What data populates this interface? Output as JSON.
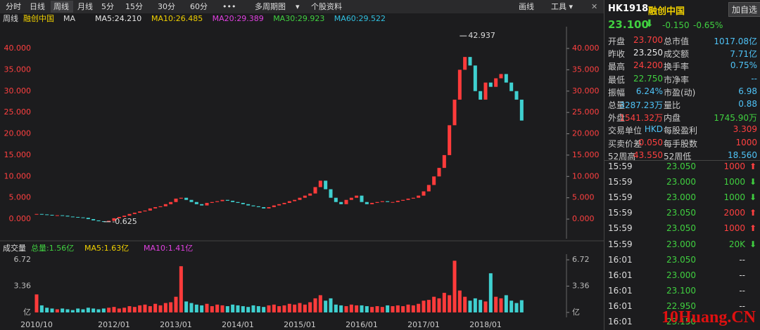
{
  "toolbar": {
    "tabs": [
      "分时",
      "日线",
      "周线",
      "月线",
      "5分",
      "15分",
      "30分",
      "60分",
      "•••",
      "多周期图",
      "▾",
      "个股资料"
    ],
    "active": 2,
    "right": [
      "画线",
      "工具 ▾"
    ]
  },
  "ma_legend": {
    "label": "周线",
    "stock": "融创中国",
    "indicator": "MA",
    "items": [
      {
        "text": "MA5:24.210",
        "color": "#e8e8e8"
      },
      {
        "text": "MA10:26.485",
        "color": "#f0d000"
      },
      {
        "text": "MA20:29.389",
        "color": "#e040e0"
      },
      {
        "text": "MA30:29.923",
        "color": "#40d040"
      },
      {
        "text": "MA60:29.522",
        "color": "#30c0e0"
      }
    ]
  },
  "volume_legend": {
    "label": "成交量",
    "items": [
      {
        "text": "总量:1.56亿",
        "color": "#40d040"
      },
      {
        "text": "MA5:1.63亿",
        "color": "#f0d000"
      },
      {
        "text": "MA10:1.41亿",
        "color": "#e040e0"
      }
    ]
  },
  "chart_data": [
    {
      "type": "candle",
      "title": "价格",
      "categories": [
        "2010/10",
        null,
        null,
        null,
        null,
        null,
        null,
        null,
        null,
        null,
        null,
        null,
        null,
        null,
        null,
        "2012/01",
        null,
        null,
        null,
        null,
        null,
        null,
        null,
        null,
        null,
        null,
        null,
        "2013/01",
        null,
        null,
        null,
        null,
        null,
        null,
        null,
        null,
        null,
        null,
        null,
        "2014/01",
        null,
        null,
        null,
        null,
        null,
        null,
        null,
        null,
        null,
        null,
        null,
        "2015/01",
        null,
        null,
        null,
        null,
        null,
        null,
        null,
        null,
        null,
        null,
        null,
        "2016/01",
        null,
        null,
        null,
        null,
        null,
        null,
        null,
        null,
        null,
        null,
        null,
        "2017/01",
        null,
        null,
        null,
        null,
        null,
        null,
        null,
        null,
        null,
        null,
        null,
        "2018/01",
        null,
        null,
        null,
        null,
        null,
        null,
        null
      ],
      "values": [
        1.2,
        1.1,
        1.0,
        0.9,
        0.9,
        0.8,
        0.6,
        0.5,
        0.4,
        0.3,
        0.0,
        -0.3,
        -0.5,
        -0.6,
        -0.4,
        0.2,
        0.5,
        0.8,
        1.2,
        1.5,
        1.8,
        2.0,
        2.5,
        2.8,
        3.0,
        3.5,
        4.0,
        4.8,
        5.0,
        4.5,
        4.0,
        3.5,
        3.2,
        3.8,
        4.0,
        4.2,
        4.5,
        4.3,
        4.0,
        3.8,
        3.5,
        3.2,
        3.0,
        2.8,
        2.5,
        2.8,
        3.2,
        3.5,
        3.8,
        4.2,
        4.5,
        5.0,
        5.5,
        6.0,
        7.5,
        9.0,
        7.0,
        5.0,
        4.0,
        3.5,
        4.5,
        5.0,
        5.5,
        4.0,
        3.5,
        3.8,
        4.0,
        4.2,
        4.0,
        4.0,
        4.3,
        4.5,
        4.8,
        5.0,
        5.5,
        6.5,
        8.0,
        10.0,
        12.0,
        15.0,
        22.0,
        28.0,
        35.0,
        38.0,
        36.0,
        30.0,
        28.0,
        32.0,
        31.0,
        33.0,
        34.0,
        32.0,
        30.0,
        28.0,
        23.1
      ],
      "high": 42.937,
      "low": -0.625,
      "ylim": [
        -4.6,
        45.1
      ],
      "yticks": [
        {
          "value": 0,
          "label": "0.000"
        },
        {
          "value": 5,
          "label": "5.000"
        },
        {
          "value": 10,
          "label": "10.000"
        },
        {
          "value": 15,
          "label": "15.000"
        },
        {
          "value": 20,
          "label": "20.000"
        },
        {
          "value": 25,
          "label": "25.000"
        },
        {
          "value": 30,
          "label": "30.000"
        },
        {
          "value": 35,
          "label": "35.000"
        },
        {
          "value": 40,
          "label": "40.000"
        }
      ],
      "up_color": "#ff3b3b",
      "down_color": "#3fd0d0"
    },
    {
      "type": "volume",
      "title": "成交量",
      "values": [
        2.3,
        0.9,
        0.6,
        0.5,
        0.4,
        0.5,
        0.4,
        0.3,
        0.5,
        0.4,
        0.6,
        0.5,
        0.4,
        0.5,
        0.6,
        0.7,
        0.5,
        0.6,
        0.8,
        0.7,
        0.9,
        1.0,
        0.8,
        1.1,
        0.9,
        1.2,
        1.3,
        2.0,
        5.9,
        1.4,
        1.2,
        1.0,
        0.9,
        1.1,
        0.8,
        1.0,
        0.9,
        0.8,
        1.0,
        0.9,
        0.8,
        0.7,
        0.9,
        0.8,
        0.7,
        0.9,
        1.0,
        0.8,
        0.9,
        1.1,
        1.0,
        1.2,
        1.0,
        1.3,
        1.8,
        2.2,
        1.5,
        1.8,
        1.0,
        0.9,
        0.8,
        1.0,
        0.9,
        0.9,
        0.8,
        0.7,
        0.8,
        0.7,
        0.9,
        0.8,
        0.9,
        0.8,
        1.0,
        0.9,
        1.1,
        1.5,
        1.6,
        2.0,
        1.8,
        2.5,
        2.2,
        6.6,
        2.8,
        2.0,
        1.5,
        1.8,
        1.6,
        1.4,
        5.0,
        2.0,
        1.8,
        2.2,
        1.5,
        1.2,
        1.56
      ],
      "ylim": [
        -0.63,
        7.44
      ],
      "yticks": [
        {
          "value": 0,
          "label": "亿"
        },
        {
          "value": 3.36,
          "label": "3.36"
        },
        {
          "value": 6.72,
          "label": "6.72"
        }
      ]
    }
  ],
  "quote": {
    "code": "HK1918",
    "name": "融创中国",
    "button": "加自选",
    "price": "23.100",
    "change": "-0.150",
    "pct": "-0.65%",
    "rows": [
      {
        "k1": "开盘",
        "v1": "23.700",
        "c1": "#ff4040",
        "k2": "总市值",
        "v2": "1017.08亿",
        "c2": "#4fc3f7"
      },
      {
        "k1": "昨收",
        "v1": "23.250",
        "c1": "#e8e8e8",
        "k2": "成交额",
        "v2": "7.71亿",
        "c2": "#4fc3f7"
      },
      {
        "k1": "最高",
        "v1": "24.200",
        "c1": "#ff4040",
        "k2": "换手率",
        "v2": "0.75%",
        "c2": "#4fc3f7"
      },
      {
        "k1": "最低",
        "v1": "22.750",
        "c1": "#40d040",
        "k2": "市净率",
        "v2": "--",
        "c2": "#4fc3f7"
      },
      {
        "k1": "振幅",
        "v1": "6.24%",
        "c1": "#4fc3f7",
        "k2": "市盈(动)",
        "v2": "6.98",
        "c2": "#4fc3f7"
      },
      {
        "k1": "总量",
        "v1": "3287.23万",
        "c1": "#4fc3f7",
        "k2": "量比",
        "v2": "0.88",
        "c2": "#4fc3f7"
      },
      {
        "k1": "外盘",
        "v1": "1541.32万",
        "c1": "#ff4040",
        "k2": "内盘",
        "v2": "1745.90万",
        "c2": "#40d040"
      },
      {
        "k1": "交易单位",
        "v1": "HKD",
        "c1": "#4fc3f7",
        "k2": "每股盈利",
        "v2": "3.309",
        "c2": "#ff4040"
      },
      {
        "k1": "买卖价差",
        "v1": "0.050",
        "c1": "#ff4040",
        "k2": "每手股数",
        "v2": "1000",
        "c2": "#ff4040"
      },
      {
        "k1": "52周高",
        "v1": "43.550",
        "c1": "#ff4040",
        "k2": "52周低",
        "v2": "18.560",
        "c2": "#4fc3f7"
      }
    ],
    "trades": [
      {
        "time": "15:59",
        "price": "23.050",
        "volume": "1000",
        "dir": "up"
      },
      {
        "time": "15:59",
        "price": "23.000",
        "volume": "1000",
        "dir": "down"
      },
      {
        "time": "15:59",
        "price": "23.000",
        "volume": "1000",
        "dir": "down"
      },
      {
        "time": "15:59",
        "price": "23.050",
        "volume": "2000",
        "dir": "up"
      },
      {
        "time": "15:59",
        "price": "23.050",
        "volume": "1000",
        "dir": "up"
      },
      {
        "time": "15:59",
        "price": "23.000",
        "volume": "20K",
        "dir": "down"
      },
      {
        "time": "16:01",
        "price": "23.050",
        "volume": "--",
        "dir": null
      },
      {
        "time": "16:01",
        "price": "23.000",
        "volume": "--",
        "dir": null
      },
      {
        "time": "16:01",
        "price": "23.100",
        "volume": "--",
        "dir": null
      },
      {
        "time": "16:01",
        "price": "22.950",
        "volume": "--",
        "dir": null
      },
      {
        "time": "16:01",
        "price": "23.150",
        "volume": "",
        "dir": null
      }
    ]
  },
  "watermark": "10Huang.CN"
}
